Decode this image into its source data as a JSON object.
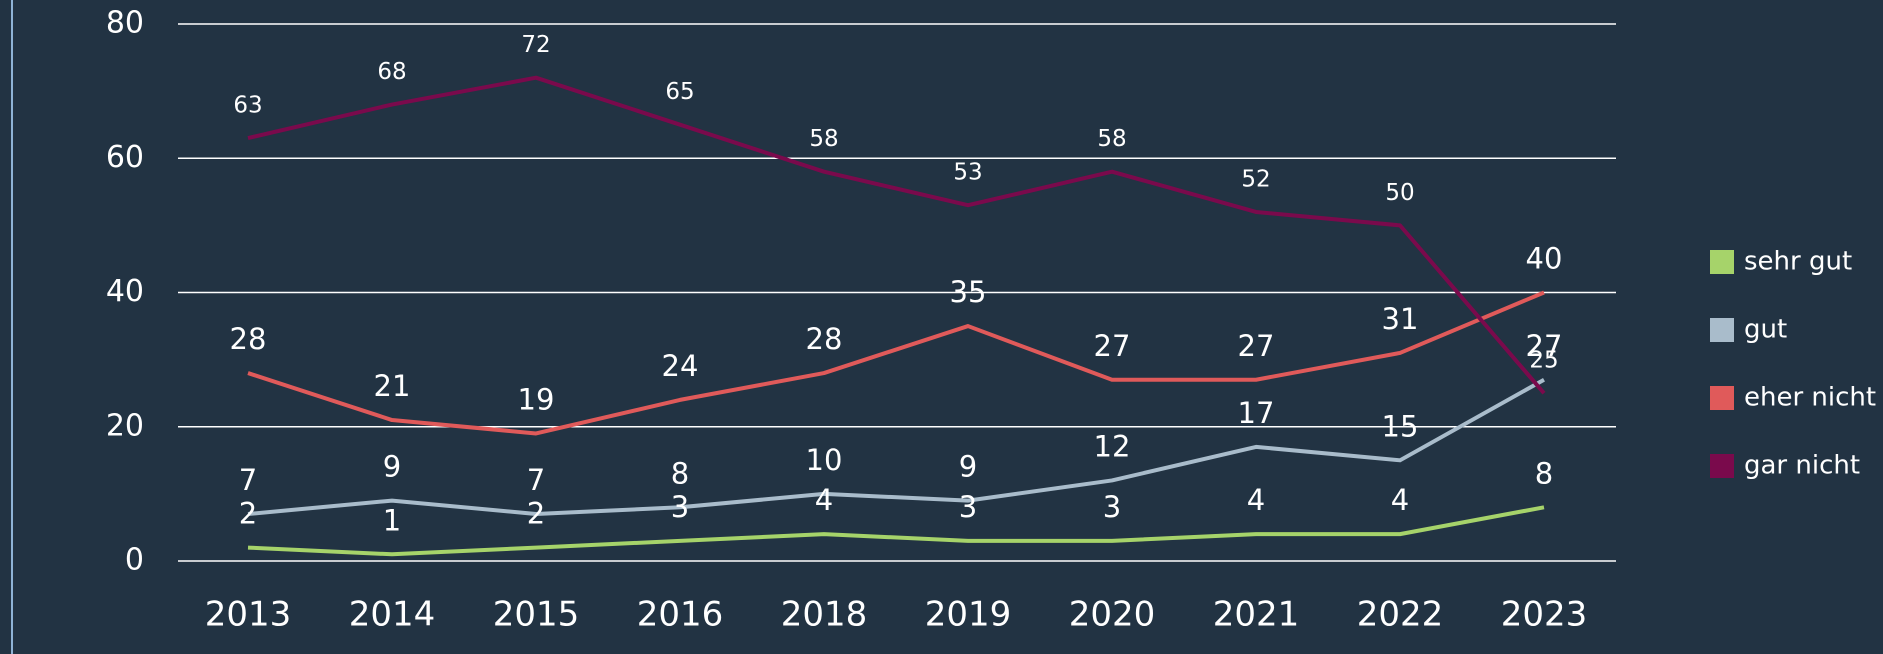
{
  "chart_data": {
    "type": "line",
    "categories": [
      "2013",
      "2014",
      "2015",
      "2016",
      "2018",
      "2019",
      "2020",
      "2021",
      "2022",
      "2023"
    ],
    "series": [
      {
        "name": "sehr gut",
        "color": "#a6d36a",
        "values": [
          2,
          1,
          2,
          3,
          4,
          3,
          3,
          4,
          4,
          8
        ]
      },
      {
        "name": "gut",
        "color": "#a9bccb",
        "values": [
          7,
          9,
          7,
          8,
          10,
          9,
          12,
          17,
          15,
          27
        ]
      },
      {
        "name": "eher nicht",
        "color": "#e05a5a",
        "values": [
          28,
          21,
          19,
          24,
          28,
          35,
          27,
          27,
          31,
          40
        ]
      },
      {
        "name": "gar nicht",
        "color": "#7a0a4c",
        "values": [
          63,
          68,
          72,
          65,
          58,
          53,
          58,
          52,
          50,
          25
        ]
      }
    ],
    "ylim": [
      0,
      80
    ],
    "yticks": [
      0,
      20,
      40,
      60,
      80
    ],
    "grid": true,
    "legend": "right"
  }
}
